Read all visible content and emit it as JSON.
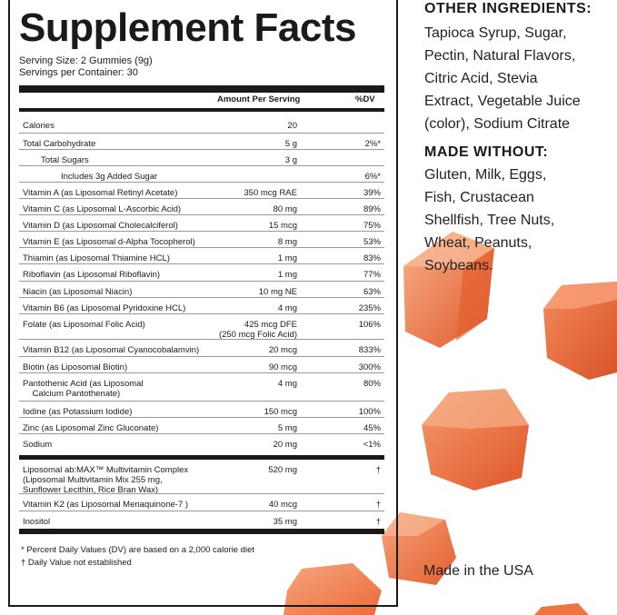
{
  "panel": {
    "title": "Supplement Facts",
    "serving_size": "Serving Size: 2 Gummies (9g)",
    "servings_per_container": "Servings per Container: 30",
    "col_amount": "Amount Per Serving",
    "col_dv": "%DV",
    "rows": [
      {
        "name": "Calories",
        "amount": "20",
        "dv": ""
      },
      {
        "name": "Total Carbohydrate",
        "amount": "5 g",
        "dv": "2%*"
      },
      {
        "name": "Total Sugars",
        "amount": "3 g",
        "dv": ""
      },
      {
        "name": "Includes 3g Added Sugar",
        "amount": "",
        "dv": "6%*"
      },
      {
        "name": "Vitamin A (as Liposomal Retinyl Acetate)",
        "amount": "350 mcg RAE",
        "dv": "39%"
      },
      {
        "name": "Vitamin C (as Liposomal L-Ascorbic Acid)",
        "amount": "80 mg",
        "dv": "89%"
      },
      {
        "name": "Vitamin D (as Liposomal Cholecalciferol)",
        "amount": "15 mcg",
        "dv": "75%"
      },
      {
        "name": "Vitamin E (as Liposomal d-Alpha Tocopherol)",
        "amount": "8 mg",
        "dv": "53%"
      },
      {
        "name": "Thiamin (as Liposomal Thiamine HCL)",
        "amount": "1 mg",
        "dv": "83%"
      },
      {
        "name": "Riboflavin (as Liposomal Riboflavin)",
        "amount": "1 mg",
        "dv": "77%"
      },
      {
        "name": "Niacin (as Liposomal Niacin)",
        "amount": "10 mg NE",
        "dv": "63%"
      },
      {
        "name": "Vitamin B6 (as Liposomal Pyridoxine HCL)",
        "amount": "4 mg",
        "dv": "235%"
      },
      {
        "name": "Folate (as Liposomal Folic Acid)",
        "amount": "425 mcg DFE\n(250 mcg Folic Acid)",
        "dv": "106%"
      },
      {
        "name": "Vitamin B12 (as Liposomal Cyanocobalamvin)",
        "amount": "20 mcg",
        "dv": "833%"
      },
      {
        "name": "Biotin (as Liposomal Biotin)",
        "amount": "90 mcg",
        "dv": "300%"
      },
      {
        "name": "Pantothenic Acid (as Liposomal\n    Calcium Pantothenate)",
        "amount": "4 mg",
        "dv": "80%"
      },
      {
        "name": "Iodine (as Potassium Iodide)",
        "amount": "150 mcg",
        "dv": "100%"
      },
      {
        "name": "Zinc (as Liposomal Zinc Gluconate)",
        "amount": "5 mg",
        "dv": "45%"
      },
      {
        "name": "Sodium",
        "amount": "20 mg",
        "dv": "<1%"
      },
      {
        "name": "Liposomal ab:MAX™ Multivitamin Complex\n(Liposomal Multivitamin Mix 255 mg,\nSunflower Lecithin, Rice Bran Wax)",
        "amount": "520 mg",
        "dv": "†"
      },
      {
        "name": "Vitamin K2 (as Liposomal Menaquinone-7 )",
        "amount": "40 mcg",
        "dv": "†"
      },
      {
        "name": "Inositol",
        "amount": "35 mg",
        "dv": "†"
      }
    ],
    "footnote_dv": "* Percent Daily Values (DV) are based on a 2,000 calorie diet",
    "footnote_dagger": "† Daily Value not established"
  },
  "other_ingredients": {
    "heading": "OTHER INGREDIENTS:",
    "lines": [
      "Tapioca Syrup, Sugar,",
      "Pectin, Natural Flavors,",
      "Citric Acid, Stevia",
      "Extract, Vegetable Juice",
      "(color), Sodium Citrate"
    ]
  },
  "made_without": {
    "heading": "MADE WITHOUT:",
    "lines": [
      "Gluten, Milk, Eggs,",
      "Fish, Crustacean",
      "Shellfish, Tree Nuts,",
      "Wheat, Peanuts,",
      "Soybeans."
    ]
  },
  "made_in": "Made in the USA",
  "colors": {
    "gummy_light": "#f6a07a",
    "gummy_mid": "#ef6f3f",
    "gummy_dark": "#d9532a"
  }
}
